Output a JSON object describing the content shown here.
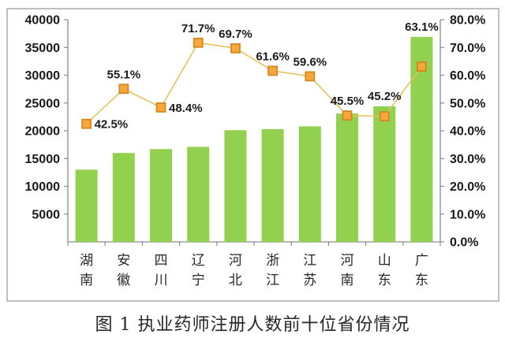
{
  "figure": {
    "caption": "图 1 执业药师注册人数前十位省份情况"
  },
  "colors": {
    "bar": "#92D050",
    "line": "#E3C35F",
    "marker_fill": "#F7A83C",
    "marker_stroke": "#D4881E",
    "axis": "#8C8C8C",
    "frame": "#BFBFBF",
    "text": "#1A1A1A"
  },
  "chart_data": {
    "type": "bar",
    "subtype": "combo-bar-line-dual-axis",
    "title": "图 1 执业药师注册人数前十位省份情况",
    "xlabel": "",
    "ylabel": "",
    "grid": false,
    "legend": null,
    "categories": [
      "湖南",
      "安徽",
      "四川",
      "辽宁",
      "河北",
      "浙江",
      "江苏",
      "河南",
      "山东",
      "广东"
    ],
    "series": [
      {
        "type": "bar",
        "axis": "left",
        "values": [
          13000,
          16000,
          16700,
          17100,
          20100,
          20300,
          20800,
          23100,
          24400,
          36900
        ]
      },
      {
        "type": "line",
        "axis": "right",
        "marker": "square",
        "values": [
          42.5,
          55.1,
          48.4,
          71.7,
          69.7,
          61.6,
          59.6,
          45.5,
          45.2,
          63.1
        ],
        "point_labels": [
          "42.5%",
          "55.1%",
          "48.4%",
          "71.7%",
          "69.7%",
          "61.6%",
          "59.6%",
          "45.5%",
          "45.2%",
          "63.1%"
        ],
        "label_positions": [
          "right",
          "above",
          "right",
          "above",
          "above",
          "above",
          "above",
          "above",
          "above",
          "above"
        ]
      }
    ],
    "left_axis": {
      "min": 0,
      "max": 40000,
      "tick_values": [
        5000,
        10000,
        15000,
        20000,
        25000,
        30000,
        35000,
        40000
      ],
      "tick_labels": [
        "5000",
        "10000",
        "15000",
        "20000",
        "25000",
        "30000",
        "35000",
        "40000"
      ]
    },
    "right_axis": {
      "min": 0,
      "max": 80,
      "tick_values": [
        0,
        10,
        20,
        30,
        40,
        50,
        60,
        70,
        80
      ],
      "tick_labels": [
        "0.0%",
        "10.0%",
        "20.0%",
        "30.0%",
        "40.0%",
        "50.0%",
        "60.0%",
        "70.0%",
        "80.0%"
      ]
    }
  }
}
